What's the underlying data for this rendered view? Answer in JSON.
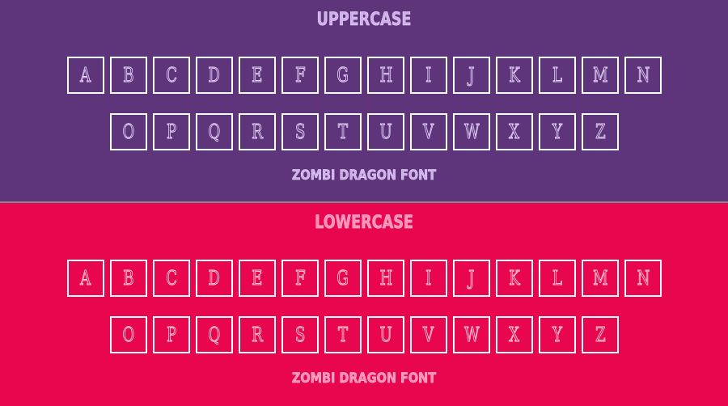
{
  "uppercase": {
    "title": "UPPERCASE",
    "row1": [
      "A",
      "B",
      "C",
      "D",
      "E",
      "F",
      "G",
      "H",
      "I",
      "J",
      "K",
      "L",
      "M",
      "N"
    ],
    "row2": [
      "O",
      "P",
      "Q",
      "R",
      "S",
      "T",
      "U",
      "V",
      "W",
      "X",
      "Y",
      "Z"
    ],
    "footer": "ZOMBI DRAGON FONT"
  },
  "lowercase": {
    "title": "LOWERCASE",
    "row1": [
      "A",
      "B",
      "C",
      "D",
      "E",
      "F",
      "G",
      "H",
      "I",
      "J",
      "K",
      "L",
      "M",
      "N"
    ],
    "row2": [
      "O",
      "P",
      "Q",
      "R",
      "S",
      "T",
      "U",
      "V",
      "W",
      "X",
      "Y",
      "Z"
    ],
    "footer": "ZOMBI DRAGON FONT"
  },
  "colors": {
    "uppercase_bg": "#5e347a",
    "lowercase_bg": "#e8064f",
    "box_border": "#ffffff"
  }
}
